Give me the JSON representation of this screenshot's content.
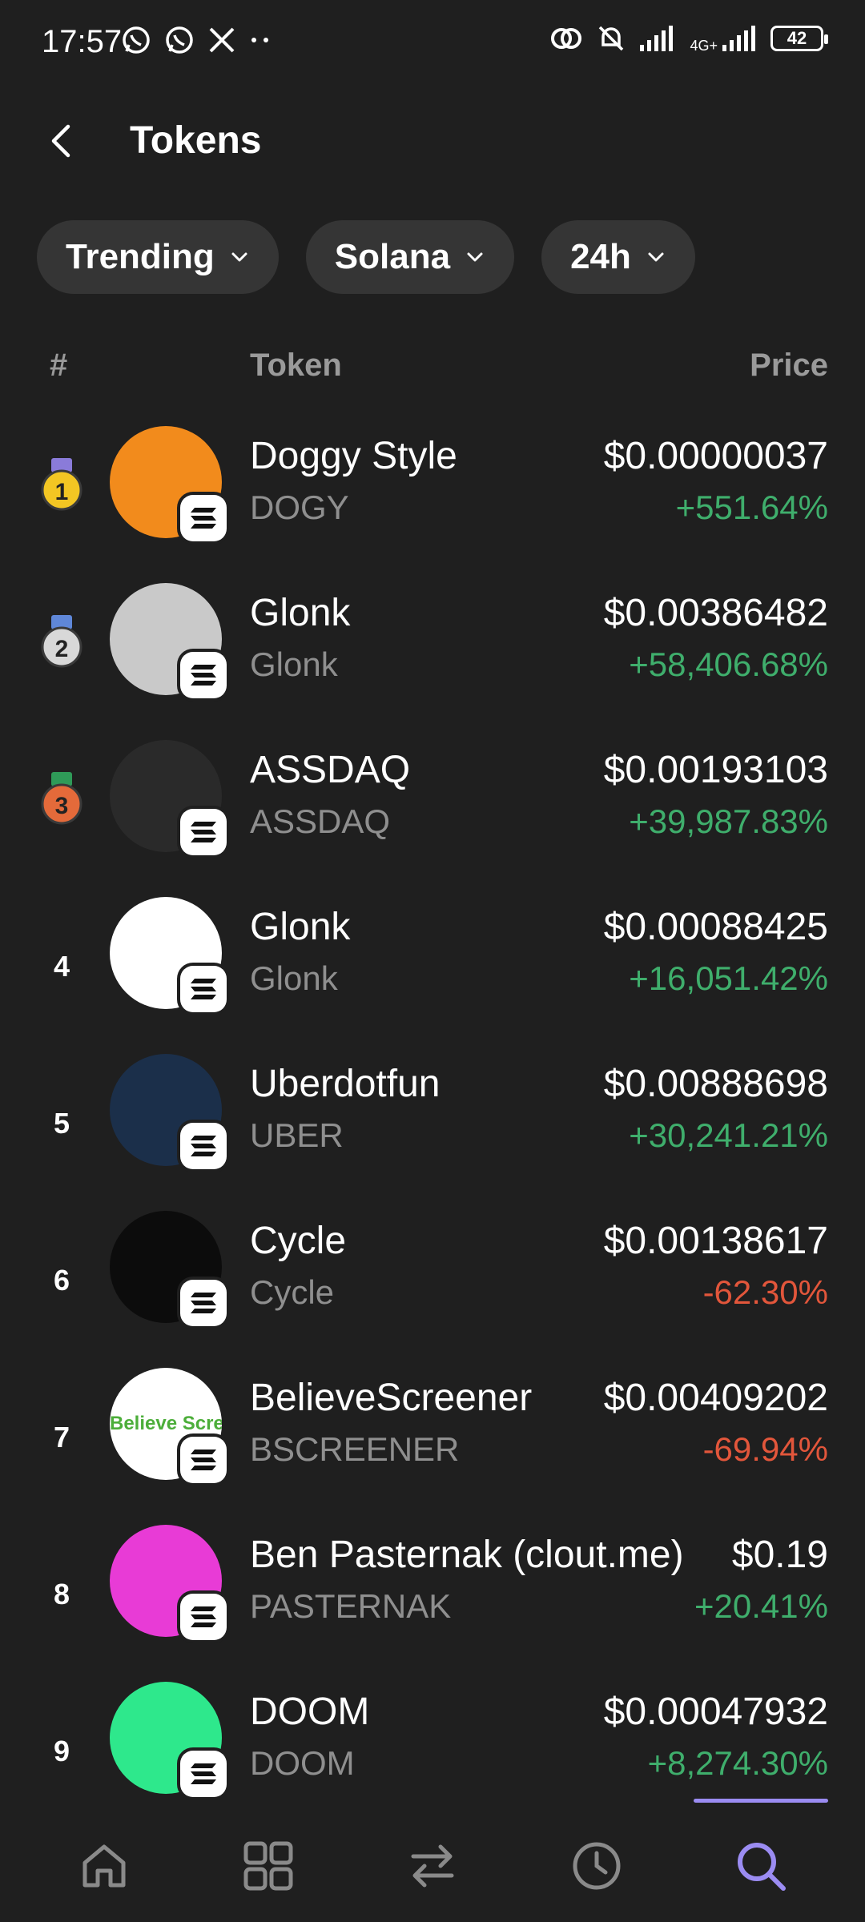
{
  "status_bar": {
    "time": "17:57",
    "network_label": "4G+",
    "battery": "42",
    "left_icons": [
      "whatsapp-icon",
      "whatsapp-icon",
      "x-icon",
      "more-dots-icon"
    ],
    "right_icons": [
      "hotspot-icon",
      "bell-muted-icon",
      "signal-icon",
      "signal-4g-icon",
      "battery-icon"
    ]
  },
  "header": {
    "title": "Tokens"
  },
  "filters": [
    {
      "label": "Trending"
    },
    {
      "label": "Solana"
    },
    {
      "label": "24h"
    }
  ],
  "table_header": {
    "rank": "#",
    "token": "Token",
    "price": "Price"
  },
  "tokens": [
    {
      "rank": "1",
      "medal": "gold",
      "name": "Doggy Style",
      "symbol": "DOGY",
      "price": "$0.00000037",
      "change": "+551.64%",
      "direction": "up",
      "avatar_color": "#f28b1c"
    },
    {
      "rank": "2",
      "medal": "silver",
      "name": "Glonk",
      "symbol": "Glonk",
      "price": "$0.00386482",
      "change": "+58,406.68%",
      "direction": "up",
      "avatar_color": "#c9c9c9"
    },
    {
      "rank": "3",
      "medal": "bronze",
      "name": "ASSDAQ",
      "symbol": "ASSDAQ",
      "price": "$0.00193103",
      "change": "+39,987.83%",
      "direction": "up",
      "avatar_color": "#2a2a2a"
    },
    {
      "rank": "4",
      "medal": "",
      "name": "Glonk",
      "symbol": "Glonk",
      "price": "$0.00088425",
      "change": "+16,051.42%",
      "direction": "up",
      "avatar_color": "#ffffff"
    },
    {
      "rank": "5",
      "medal": "",
      "name": "Uberdotfun",
      "symbol": "UBER",
      "price": "$0.00888698",
      "change": "+30,241.21%",
      "direction": "up",
      "avatar_color": "#1b2f4a"
    },
    {
      "rank": "6",
      "medal": "",
      "name": "Cycle",
      "symbol": "Cycle",
      "price": "$0.00138617",
      "change": "-62.30%",
      "direction": "down",
      "avatar_color": "#0c0c0c"
    },
    {
      "rank": "7",
      "medal": "",
      "name": "BelieveScreener",
      "symbol": "BSCREENER",
      "price": "$0.00409202",
      "change": "-69.94%",
      "direction": "down",
      "avatar_color": "#ffffff",
      "avatar_text": "Believe Scree"
    },
    {
      "rank": "8",
      "medal": "",
      "name": "Ben Pasternak (clout.me)",
      "symbol": "PASTERNAK",
      "price": "$0.19",
      "change": "+20.41%",
      "direction": "up",
      "avatar_color": "#e83bd6"
    },
    {
      "rank": "9",
      "medal": "",
      "name": "DOOM",
      "symbol": "DOOM",
      "price": "$0.00047932",
      "change": "+8,274.30%",
      "direction": "up",
      "avatar_color": "#2ee88c"
    }
  ],
  "colors": {
    "positive": "#3fae6c",
    "negative": "#e2563b",
    "accent": "#9b8cf2",
    "background": "#1f1f1f"
  },
  "bottom_nav": [
    {
      "icon": "home-icon",
      "active": false
    },
    {
      "icon": "grid-icon",
      "active": false
    },
    {
      "icon": "swap-icon",
      "active": false
    },
    {
      "icon": "history-icon",
      "active": false
    },
    {
      "icon": "search-icon",
      "active": true
    }
  ]
}
